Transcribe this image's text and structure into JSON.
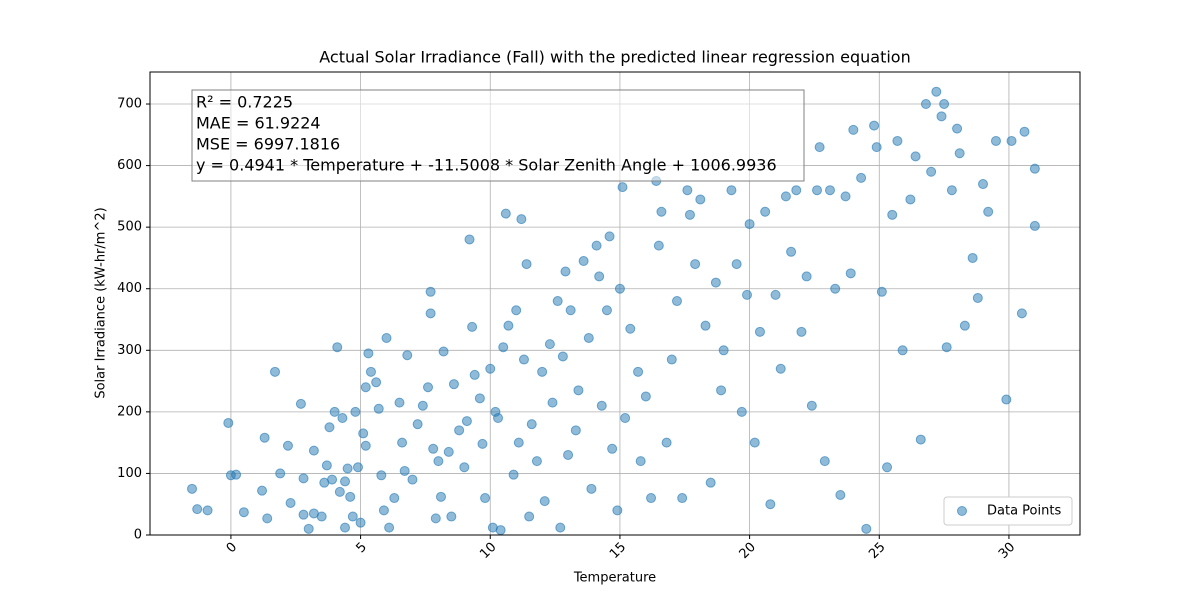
{
  "chart_data": {
    "type": "scatter",
    "title": "Actual Solar Irradiance (Fall) with the predicted linear regression equation",
    "x_label": "Temperature",
    "y_label": "Solar Irradiance (kW-hr/m^2)",
    "annotation_lines": [
      "R² = 0.7225",
      "MAE = 61.9224",
      "MSE = 6997.1816",
      "y = 0.4941 * Temperature + -11.5008 * Solar Zenith Angle + 1006.9936"
    ],
    "xlim": [
      -3.12,
      32.74
    ],
    "ylim": [
      0,
      752
    ],
    "xticks": [
      0,
      5,
      10,
      15,
      20,
      25,
      30
    ],
    "yticks": [
      0,
      100,
      200,
      300,
      400,
      500,
      600,
      700
    ],
    "grid": true,
    "legend": "lower right",
    "x": [
      -1.5,
      -1.3,
      -0.9,
      -0.1,
      0,
      0.2,
      0.5,
      1.2,
      1.3,
      1.4,
      1.7,
      1.9,
      2.2,
      2.3,
      2.7,
      2.8,
      2.8,
      3.0,
      3.2,
      3.2,
      3.5,
      3.6,
      3.7,
      3.8,
      3.9,
      4.0,
      4.1,
      4.2,
      4.3,
      4.4,
      4.4,
      4.5,
      4.6,
      4.7,
      4.8,
      4.9,
      5.0,
      5.1,
      5.2,
      5.2,
      5.3,
      5.4,
      5.6,
      5.7,
      5.8,
      5.9,
      6.0,
      6.1,
      6.3,
      6.5,
      6.6,
      6.7,
      6.8,
      7.0,
      7.2,
      7.4,
      7.6,
      7.7,
      7.7,
      7.8,
      7.9,
      8.0,
      8.1,
      8.2,
      8.4,
      8.5,
      8.6,
      8.8,
      9.0,
      9.1,
      9.2,
      9.3,
      9.4,
      9.6,
      9.7,
      9.8,
      10.0,
      10.1,
      10.2,
      10.3,
      10.4,
      10.5,
      10.6,
      10.7,
      10.9,
      11.0,
      11.1,
      11.2,
      11.3,
      11.4,
      11.5,
      11.6,
      11.8,
      12.0,
      12.1,
      12.3,
      12.4,
      12.6,
      12.7,
      12.8,
      12.9,
      13.0,
      13.1,
      13.3,
      13.4,
      13.6,
      13.8,
      13.9,
      14.1,
      14.2,
      14.3,
      14.5,
      14.6,
      14.7,
      14.9,
      15.0,
      15.1,
      15.2,
      15.4,
      15.7,
      15.8,
      16.0,
      16.2,
      16.4,
      16.5,
      16.6,
      16.8,
      17.0,
      17.2,
      17.4,
      17.6,
      17.7,
      17.9,
      18.1,
      18.3,
      18.5,
      18.7,
      18.9,
      19.0,
      19.3,
      19.5,
      19.7,
      19.9,
      20.0,
      20.2,
      20.4,
      20.6,
      20.8,
      21.0,
      21.2,
      21.4,
      21.6,
      21.8,
      22.0,
      22.2,
      22.4,
      22.6,
      22.7,
      22.9,
      23.1,
      23.3,
      23.5,
      23.7,
      23.9,
      24.0,
      24.3,
      24.5,
      24.8,
      24.9,
      25.1,
      25.3,
      25.5,
      25.7,
      25.9,
      26.2,
      26.4,
      26.6,
      26.8,
      27.0,
      27.2,
      27.4,
      27.5,
      27.6,
      27.8,
      28.0,
      28.1,
      28.3,
      28.6,
      28.8,
      29.0,
      29.2,
      29.5,
      29.9,
      30.1,
      30.5,
      30.6,
      31.0,
      31.0
    ],
    "series": [
      {
        "name": "Data Points",
        "color": "#1f77b4",
        "values": [
          75,
          42,
          40,
          182,
          97,
          98,
          37,
          72,
          158,
          27,
          265,
          100,
          145,
          52,
          213,
          92,
          33,
          10,
          35,
          137,
          30,
          85,
          113,
          175,
          90,
          200,
          305,
          70,
          190,
          12,
          87,
          108,
          62,
          30,
          200,
          110,
          20,
          165,
          145,
          240,
          295,
          265,
          248,
          205,
          97,
          40,
          320,
          12,
          60,
          215,
          150,
          104,
          292,
          90,
          180,
          210,
          240,
          395,
          360,
          140,
          27,
          120,
          62,
          298,
          135,
          30,
          245,
          170,
          110,
          185,
          480,
          338,
          260,
          222,
          148,
          60,
          270,
          12,
          200,
          190,
          8,
          305,
          522,
          340,
          98,
          365,
          150,
          513,
          285,
          440,
          30,
          180,
          120,
          265,
          55,
          310,
          215,
          380,
          12,
          290,
          428,
          130,
          365,
          170,
          235,
          445,
          320,
          75,
          470,
          420,
          210,
          365,
          485,
          140,
          40,
          400,
          565,
          190,
          335,
          265,
          120,
          225,
          60,
          575,
          470,
          525,
          150,
          285,
          380,
          60,
          560,
          520,
          440,
          545,
          340,
          85,
          410,
          235,
          300,
          560,
          440,
          200,
          390,
          505,
          150,
          330,
          525,
          50,
          390,
          270,
          550,
          460,
          560,
          330,
          420,
          210,
          560,
          630,
          120,
          560,
          400,
          65,
          550,
          425,
          658,
          580,
          10,
          665,
          630,
          395,
          110,
          520,
          640,
          300,
          545,
          615,
          155,
          700,
          590,
          720,
          680,
          700,
          305,
          560,
          660,
          620,
          340,
          450,
          385,
          570,
          525,
          640,
          220,
          640,
          360,
          655,
          595,
          502
        ]
      }
    ]
  }
}
